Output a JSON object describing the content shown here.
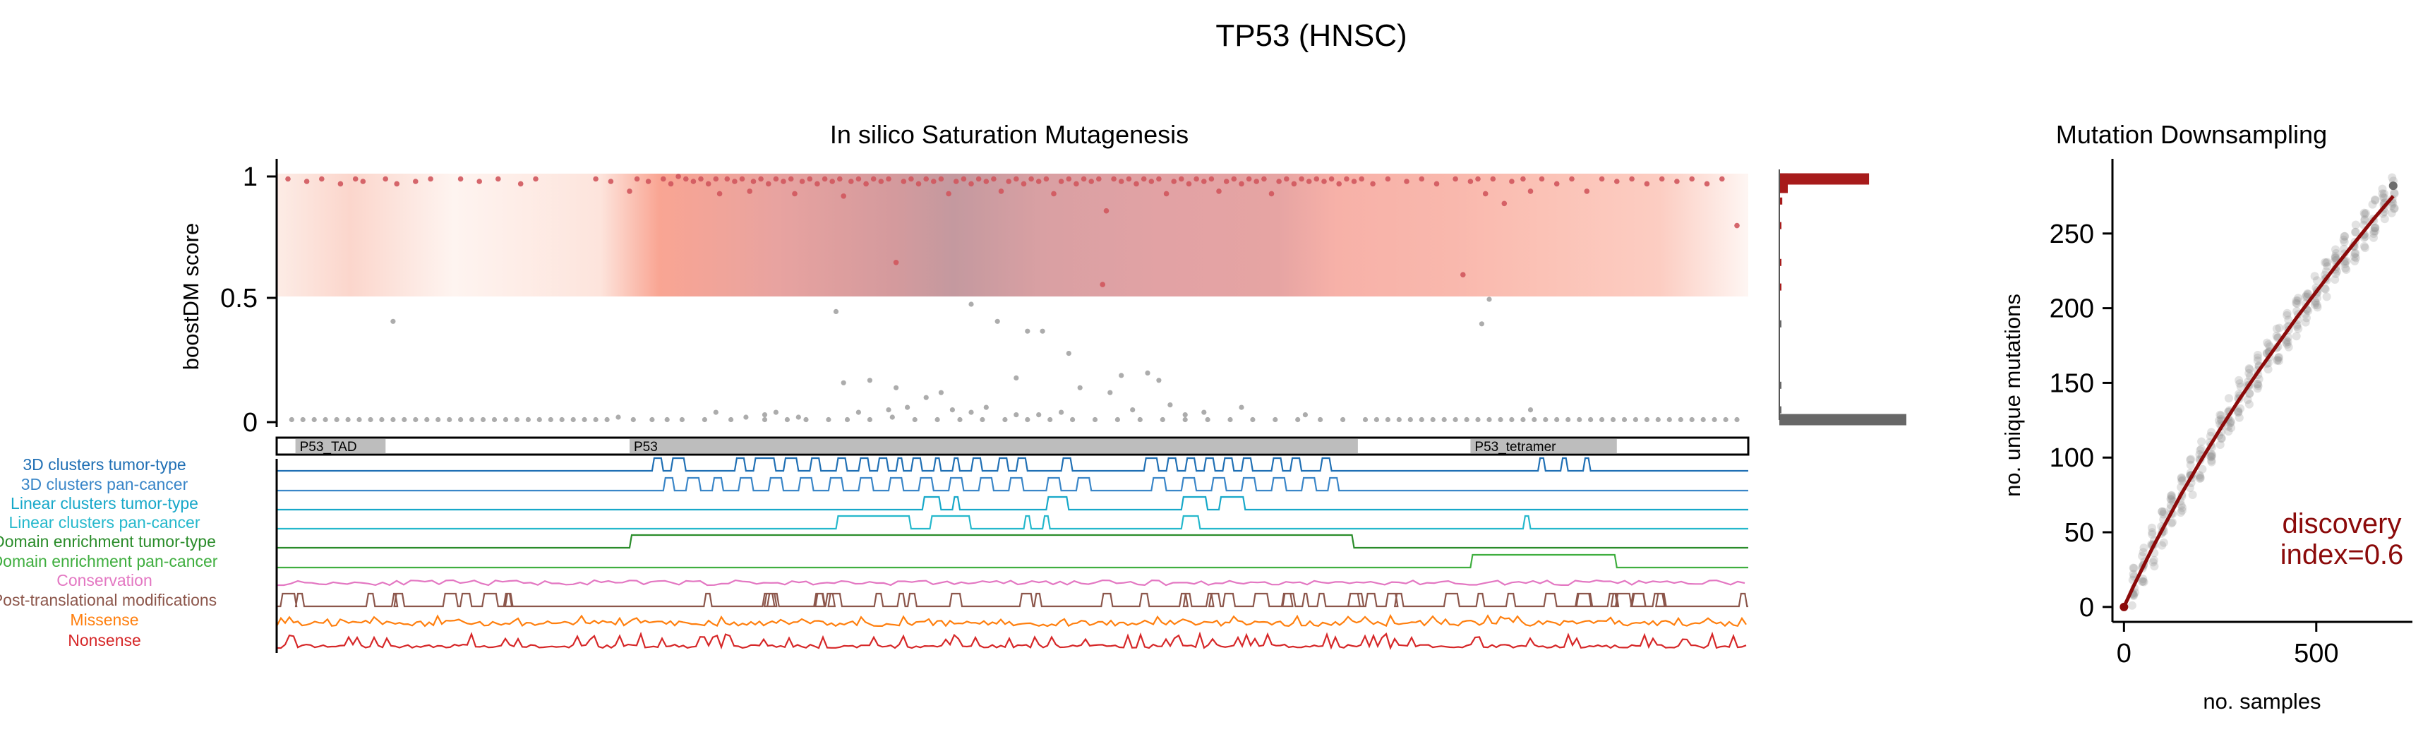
{
  "figure": {
    "title": "TP53 (HNSC)"
  },
  "colors": {
    "pathogenic": "#d0575d",
    "neutral": "#9e9e9e",
    "hist_top": "#a71b1b",
    "hist_bottom": "#676767",
    "fit_line": "#8b0a0a",
    "domain_box": "#bdbdbd",
    "track_3d_tumor": "#1f6fb4",
    "track_3d_pan": "#3a86c8",
    "track_linear_tumor": "#17a8c9",
    "track_linear_pan": "#25b8cc",
    "track_domain_tumor": "#2a8c2a",
    "track_domain_pan": "#3fae3f",
    "track_conservation": "#e377c2",
    "track_ptm": "#8c564b",
    "track_missense": "#ff7f0e",
    "track_nonsense": "#d62728"
  },
  "chart_data": [
    {
      "type": "scatter",
      "title": "In silico Saturation Mutagenesis",
      "ylabel": "boostDM score",
      "y_ticks": [
        "0",
        "0.5",
        "1"
      ],
      "ylim": [
        0,
        1.05
      ],
      "xlim": [
        1,
        393
      ],
      "background_gradient_band": [
        0.5,
        1.0
      ],
      "domains": [
        {
          "name": "P53_TAD",
          "start": 6,
          "end": 30
        },
        {
          "name": "P53",
          "start": 95,
          "end": 289
        },
        {
          "name": "P53_tetramer",
          "start": 319,
          "end": 358
        }
      ],
      "tracks": [
        {
          "name": "3D clusters tumor-type",
          "color": "#1f6fb4"
        },
        {
          "name": "3D clusters pan-cancer",
          "color": "#3a86c8"
        },
        {
          "name": "Linear clusters tumor-type",
          "color": "#17a8c9"
        },
        {
          "name": "Linear clusters pan-cancer",
          "color": "#25b8cc"
        },
        {
          "name": "Domain enrichment tumor-type",
          "color": "#2a8c2a"
        },
        {
          "name": "Domain enrichment pan-cancer",
          "color": "#3fae3f"
        },
        {
          "name": "Conservation",
          "color": "#e377c2"
        },
        {
          "name": "Post-translational modifications",
          "color": "#8c564b"
        },
        {
          "name": "Missense",
          "color": "#ff7f0e"
        },
        {
          "name": "Nonsense",
          "color": "#d62728"
        }
      ],
      "points_pathogenic": [
        [
          4,
          0.99
        ],
        [
          9,
          0.98
        ],
        [
          13,
          0.99
        ],
        [
          18,
          0.97
        ],
        [
          22,
          0.99
        ],
        [
          24,
          0.98
        ],
        [
          30,
          0.99
        ],
        [
          33,
          0.97
        ],
        [
          38,
          0.98
        ],
        [
          42,
          0.99
        ],
        [
          50,
          0.99
        ],
        [
          55,
          0.98
        ],
        [
          60,
          0.99
        ],
        [
          66,
          0.97
        ],
        [
          70,
          0.99
        ],
        [
          86,
          0.99
        ],
        [
          90,
          0.98
        ],
        [
          95,
          0.94
        ],
        [
          97,
          0.99
        ],
        [
          100,
          0.98
        ],
        [
          104,
          0.99
        ],
        [
          106,
          0.97
        ],
        [
          108,
          1.0
        ],
        [
          110,
          0.99
        ],
        [
          112,
          0.98
        ],
        [
          114,
          0.99
        ],
        [
          116,
          0.97
        ],
        [
          118,
          0.99
        ],
        [
          119,
          0.93
        ],
        [
          121,
          0.99
        ],
        [
          123,
          0.98
        ],
        [
          125,
          0.99
        ],
        [
          127,
          0.94
        ],
        [
          128,
          0.98
        ],
        [
          130,
          0.99
        ],
        [
          132,
          0.97
        ],
        [
          134,
          0.99
        ],
        [
          136,
          0.98
        ],
        [
          138,
          0.99
        ],
        [
          139,
          0.93
        ],
        [
          141,
          0.98
        ],
        [
          143,
          0.99
        ],
        [
          145,
          0.97
        ],
        [
          147,
          0.99
        ],
        [
          149,
          0.98
        ],
        [
          151,
          0.99
        ],
        [
          152,
          0.92
        ],
        [
          154,
          0.98
        ],
        [
          156,
          0.99
        ],
        [
          158,
          0.97
        ],
        [
          160,
          0.99
        ],
        [
          162,
          0.98
        ],
        [
          164,
          0.99
        ],
        [
          166,
          0.65
        ],
        [
          168,
          0.98
        ],
        [
          170,
          0.99
        ],
        [
          172,
          0.97
        ],
        [
          174,
          0.99
        ],
        [
          176,
          0.98
        ],
        [
          178,
          0.99
        ],
        [
          180,
          0.93
        ],
        [
          182,
          0.98
        ],
        [
          184,
          0.99
        ],
        [
          186,
          0.97
        ],
        [
          188,
          0.99
        ],
        [
          190,
          0.98
        ],
        [
          192,
          0.99
        ],
        [
          194,
          0.94
        ],
        [
          196,
          0.98
        ],
        [
          198,
          0.99
        ],
        [
          200,
          0.97
        ],
        [
          202,
          0.99
        ],
        [
          204,
          0.98
        ],
        [
          206,
          0.99
        ],
        [
          208,
          0.93
        ],
        [
          210,
          0.98
        ],
        [
          212,
          0.99
        ],
        [
          214,
          0.97
        ],
        [
          216,
          0.99
        ],
        [
          218,
          0.98
        ],
        [
          220,
          0.99
        ],
        [
          222,
          0.86
        ],
        [
          224,
          0.99
        ],
        [
          226,
          0.98
        ],
        [
          228,
          0.99
        ],
        [
          230,
          0.97
        ],
        [
          232,
          0.99
        ],
        [
          234,
          0.98
        ],
        [
          236,
          0.99
        ],
        [
          238,
          0.93
        ],
        [
          240,
          0.98
        ],
        [
          242,
          0.99
        ],
        [
          244,
          0.97
        ],
        [
          246,
          0.99
        ],
        [
          248,
          0.98
        ],
        [
          250,
          0.99
        ],
        [
          252,
          0.94
        ],
        [
          254,
          0.98
        ],
        [
          256,
          0.99
        ],
        [
          258,
          0.97
        ],
        [
          260,
          0.99
        ],
        [
          262,
          0.98
        ],
        [
          264,
          0.99
        ],
        [
          266,
          0.93
        ],
        [
          268,
          0.98
        ],
        [
          270,
          0.99
        ],
        [
          272,
          0.97
        ],
        [
          274,
          0.99
        ],
        [
          276,
          0.98
        ],
        [
          278,
          0.99
        ],
        [
          280,
          0.98
        ],
        [
          282,
          0.99
        ],
        [
          284,
          0.97
        ],
        [
          286,
          0.99
        ],
        [
          288,
          0.98
        ],
        [
          290,
          0.99
        ],
        [
          293,
          0.97
        ],
        [
          297,
          0.99
        ],
        [
          302,
          0.98
        ],
        [
          306,
          0.99
        ],
        [
          310,
          0.97
        ],
        [
          315,
          0.99
        ],
        [
          319,
          0.98
        ],
        [
          321,
          0.99
        ],
        [
          323,
          0.93
        ],
        [
          325,
          0.99
        ],
        [
          328,
          0.89
        ],
        [
          330,
          0.98
        ],
        [
          333,
          0.99
        ],
        [
          335,
          0.94
        ],
        [
          338,
          0.99
        ],
        [
          342,
          0.97
        ],
        [
          346,
          0.99
        ],
        [
          350,
          0.94
        ],
        [
          354,
          0.99
        ],
        [
          358,
          0.98
        ],
        [
          362,
          0.99
        ],
        [
          366,
          0.97
        ],
        [
          370,
          0.99
        ],
        [
          374,
          0.98
        ],
        [
          378,
          0.99
        ],
        [
          382,
          0.97
        ],
        [
          386,
          0.99
        ],
        [
          390,
          0.8
        ],
        [
          221,
          0.56
        ],
        [
          317,
          0.6
        ]
      ],
      "points_neutral": [
        [
          5,
          0.01
        ],
        [
          8,
          0.01
        ],
        [
          11,
          0.01
        ],
        [
          14,
          0.01
        ],
        [
          17,
          0.01
        ],
        [
          20,
          0.01
        ],
        [
          23,
          0.01
        ],
        [
          26,
          0.01
        ],
        [
          29,
          0.01
        ],
        [
          32,
          0.01
        ],
        [
          35,
          0.01
        ],
        [
          38,
          0.01
        ],
        [
          41,
          0.01
        ],
        [
          44,
          0.01
        ],
        [
          47,
          0.01
        ],
        [
          50,
          0.01
        ],
        [
          53,
          0.01
        ],
        [
          56,
          0.01
        ],
        [
          59,
          0.01
        ],
        [
          62,
          0.01
        ],
        [
          65,
          0.01
        ],
        [
          68,
          0.01
        ],
        [
          71,
          0.01
        ],
        [
          74,
          0.01
        ],
        [
          77,
          0.01
        ],
        [
          80,
          0.01
        ],
        [
          83,
          0.01
        ],
        [
          86,
          0.01
        ],
        [
          89,
          0.01
        ],
        [
          92,
          0.02
        ],
        [
          96,
          0.01
        ],
        [
          101,
          0.01
        ],
        [
          105,
          0.01
        ],
        [
          109,
          0.01
        ],
        [
          115,
          0.01
        ],
        [
          122,
          0.01
        ],
        [
          126,
          0.02
        ],
        [
          131,
          0.01
        ],
        [
          137,
          0.01
        ],
        [
          142,
          0.01
        ],
        [
          148,
          0.01
        ],
        [
          153,
          0.01
        ],
        [
          159,
          0.01
        ],
        [
          165,
          0.02
        ],
        [
          171,
          0.01
        ],
        [
          177,
          0.01
        ],
        [
          183,
          0.01
        ],
        [
          189,
          0.01
        ],
        [
          195,
          0.01
        ],
        [
          201,
          0.01
        ],
        [
          207,
          0.01
        ],
        [
          213,
          0.01
        ],
        [
          219,
          0.01
        ],
        [
          225,
          0.01
        ],
        [
          231,
          0.01
        ],
        [
          237,
          0.01
        ],
        [
          243,
          0.01
        ],
        [
          249,
          0.01
        ],
        [
          255,
          0.01
        ],
        [
          261,
          0.01
        ],
        [
          267,
          0.01
        ],
        [
          273,
          0.01
        ],
        [
          279,
          0.01
        ],
        [
          285,
          0.01
        ],
        [
          291,
          0.01
        ],
        [
          294,
          0.01
        ],
        [
          297,
          0.01
        ],
        [
          300,
          0.01
        ],
        [
          303,
          0.01
        ],
        [
          306,
          0.01
        ],
        [
          309,
          0.01
        ],
        [
          312,
          0.01
        ],
        [
          315,
          0.01
        ],
        [
          318,
          0.01
        ],
        [
          321,
          0.01
        ],
        [
          324,
          0.01
        ],
        [
          327,
          0.01
        ],
        [
          330,
          0.01
        ],
        [
          333,
          0.01
        ],
        [
          336,
          0.01
        ],
        [
          339,
          0.01
        ],
        [
          342,
          0.01
        ],
        [
          345,
          0.01
        ],
        [
          348,
          0.01
        ],
        [
          351,
          0.01
        ],
        [
          354,
          0.01
        ],
        [
          357,
          0.01
        ],
        [
          360,
          0.01
        ],
        [
          363,
          0.01
        ],
        [
          366,
          0.01
        ],
        [
          369,
          0.01
        ],
        [
          372,
          0.01
        ],
        [
          375,
          0.01
        ],
        [
          378,
          0.01
        ],
        [
          381,
          0.01
        ],
        [
          384,
          0.01
        ],
        [
          387,
          0.01
        ],
        [
          390,
          0.01
        ],
        [
          32,
          0.41
        ],
        [
          150,
          0.45
        ],
        [
          186,
          0.48
        ],
        [
          193,
          0.41
        ],
        [
          201,
          0.37
        ],
        [
          205,
          0.37
        ],
        [
          152,
          0.16
        ],
        [
          159,
          0.17
        ],
        [
          166,
          0.14
        ],
        [
          174,
          0.1
        ],
        [
          178,
          0.12
        ],
        [
          164,
          0.05
        ],
        [
          186,
          0.04
        ],
        [
          190,
          0.06
        ],
        [
          198,
          0.18
        ],
        [
          204,
          0.03
        ],
        [
          212,
          0.28
        ],
        [
          215,
          0.14
        ],
        [
          223,
          0.12
        ],
        [
          226,
          0.19
        ],
        [
          229,
          0.05
        ],
        [
          233,
          0.2
        ],
        [
          236,
          0.17
        ],
        [
          239,
          0.07
        ],
        [
          243,
          0.03
        ],
        [
          169,
          0.06
        ],
        [
          181,
          0.05
        ],
        [
          156,
          0.04
        ],
        [
          134,
          0.04
        ],
        [
          140,
          0.02
        ],
        [
          322,
          0.4
        ],
        [
          324,
          0.5
        ],
        [
          335,
          0.05
        ],
        [
          198,
          0.03
        ],
        [
          210,
          0.04
        ],
        [
          248,
          0.04
        ],
        [
          258,
          0.06
        ],
        [
          275,
          0.03
        ],
        [
          118,
          0.04
        ],
        [
          131,
          0.03
        ]
      ]
    },
    {
      "type": "bar",
      "orientation": "horizontal",
      "ylim": [
        0,
        1.05
      ],
      "bins": [
        {
          "y": 0.99,
          "count": 60
        },
        {
          "y": 0.96,
          "count": 5
        },
        {
          "y": 0.9,
          "count": 2
        },
        {
          "y": 0.8,
          "count": 1
        },
        {
          "y": 0.65,
          "count": 1
        },
        {
          "y": 0.55,
          "count": 1
        },
        {
          "y": 0.4,
          "count": 1
        },
        {
          "y": 0.15,
          "count": 1
        },
        {
          "y": 0.05,
          "count": 1
        },
        {
          "y": 0.01,
          "count": 85
        }
      ]
    },
    {
      "type": "line",
      "title": "Mutation Downsampling",
      "xlabel": "no. samples",
      "ylabel": "no. unique mutations",
      "xlim": [
        -30,
        750
      ],
      "ylim": [
        -10,
        300
      ],
      "x_ticks": [
        0,
        500
      ],
      "y_ticks": [
        0,
        50,
        100,
        150,
        200,
        250
      ],
      "series": [
        {
          "x": [
            0,
            25,
            50,
            75,
            100,
            150,
            200,
            250,
            300,
            350,
            400,
            450,
            500,
            550,
            600,
            650,
            700
          ],
          "values": [
            0,
            14,
            27,
            40,
            52,
            76,
            98,
            119,
            139,
            158,
            176,
            194,
            211,
            228,
            244,
            260,
            275
          ]
        }
      ],
      "scatter_x": [
        25,
        50,
        75,
        100,
        125,
        150,
        175,
        200,
        225,
        250,
        275,
        300,
        325,
        350,
        375,
        400,
        425,
        450,
        475,
        500,
        525,
        550,
        575,
        600,
        625,
        650,
        675,
        700
      ],
      "annotation": "discovery\nindex=0.6"
    }
  ]
}
